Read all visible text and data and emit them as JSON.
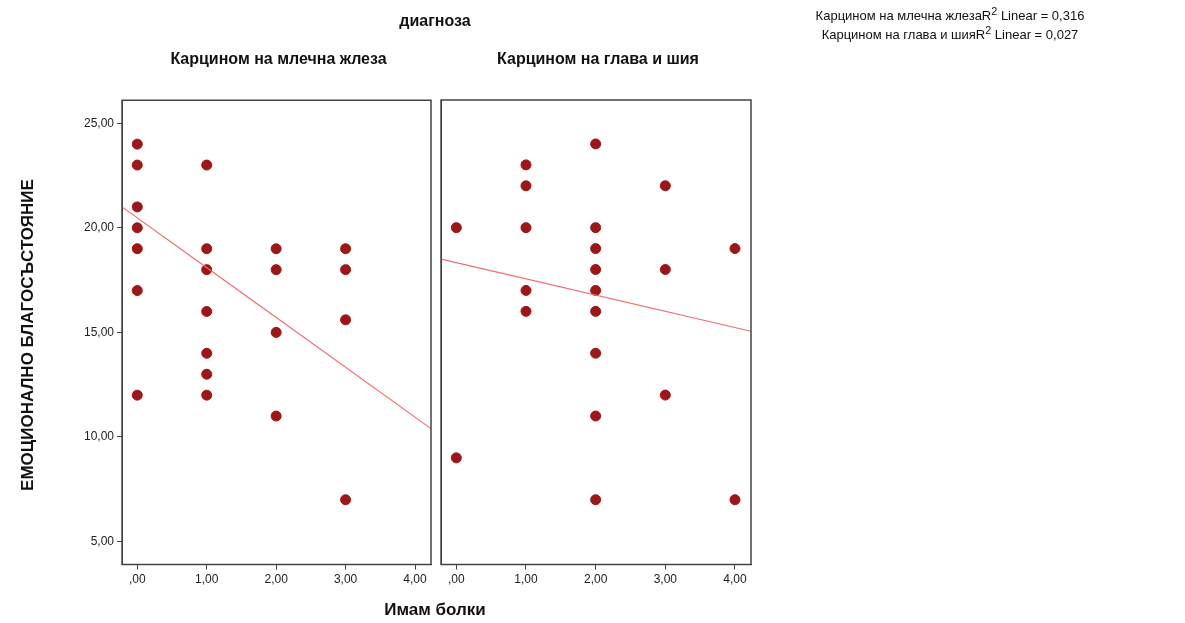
{
  "chart_data": [
    {
      "type": "scatter",
      "title": "Карцином на млечна жлеза",
      "xlabel": "Имам болки",
      "ylabel": "ЕМОЦИОНАЛНО БЛАГОСЪСТОЯНИЕ",
      "annotations": [
        "диагноза",
        "Карцином на млечна жлезаR$^{2}$ Linear = 0,316",
        "Карцином на глава и шияR$^{2}$ Linear = 0,027"
      ],
      "series": [
        {
          "type": "scatter",
          "marker": "circle",
          "color": "#9e1616",
          "x": [
            0,
            0,
            0,
            0,
            0,
            0,
            0,
            1,
            1,
            1,
            1,
            1,
            1,
            1,
            2,
            2,
            2,
            2,
            3,
            3,
            3,
            3
          ],
          "values": [
            24,
            23,
            21,
            20,
            19,
            17,
            12,
            23,
            19,
            18,
            16,
            14,
            13,
            12,
            19,
            18,
            15,
            11,
            19,
            18,
            15.6,
            7
          ]
        },
        {
          "type": "line",
          "color": "#f26b6b",
          "x": [
            -0.22,
            4.23
          ],
          "values": [
            21.0,
            10.4
          ]
        }
      ],
      "xlim": [
        -0.22,
        4.23
      ],
      "ylim": [
        3.9,
        26.1
      ],
      "xticks": [
        {
          "value": 0,
          "label": ",00"
        },
        {
          "value": 1,
          "label": "1,00"
        },
        {
          "value": 2,
          "label": "2,00"
        },
        {
          "value": 3,
          "label": "3,00"
        },
        {
          "value": 4,
          "label": "4,00"
        }
      ],
      "yticks": [
        {
          "value": 5,
          "label": "5,00"
        },
        {
          "value": 10,
          "label": "10,00"
        },
        {
          "value": 15,
          "label": "15,00"
        },
        {
          "value": 20,
          "label": "20,00"
        },
        {
          "value": 25,
          "label": "25,00"
        }
      ]
    },
    {
      "type": "scatter",
      "title": "Карцином на глава и шия",
      "series": [
        {
          "type": "scatter",
          "marker": "circle",
          "color": "#9e1616",
          "x": [
            0,
            0,
            1,
            1,
            1,
            1,
            1,
            2,
            2,
            2,
            2,
            2,
            2,
            2,
            2,
            2,
            3,
            3,
            3,
            4,
            4
          ],
          "values": [
            20,
            9,
            23,
            22,
            20,
            17,
            16,
            24,
            20,
            19,
            18,
            17,
            16,
            14,
            11,
            7,
            22,
            18,
            12,
            19,
            7
          ]
        },
        {
          "type": "line",
          "color": "#f26b6b",
          "x": [
            -0.22,
            4.23
          ],
          "values": [
            18.5,
            15.05
          ]
        }
      ],
      "xlim": [
        -0.22,
        4.23
      ],
      "ylim": [
        3.9,
        26.1
      ],
      "xticks": [
        {
          "value": 0,
          "label": ",00"
        },
        {
          "value": 1,
          "label": "1,00"
        },
        {
          "value": 2,
          "label": "2,00"
        },
        {
          "value": 3,
          "label": "3,00"
        },
        {
          "value": 4,
          "label": "4,00"
        }
      ],
      "tick_labels": "x"
    }
  ]
}
